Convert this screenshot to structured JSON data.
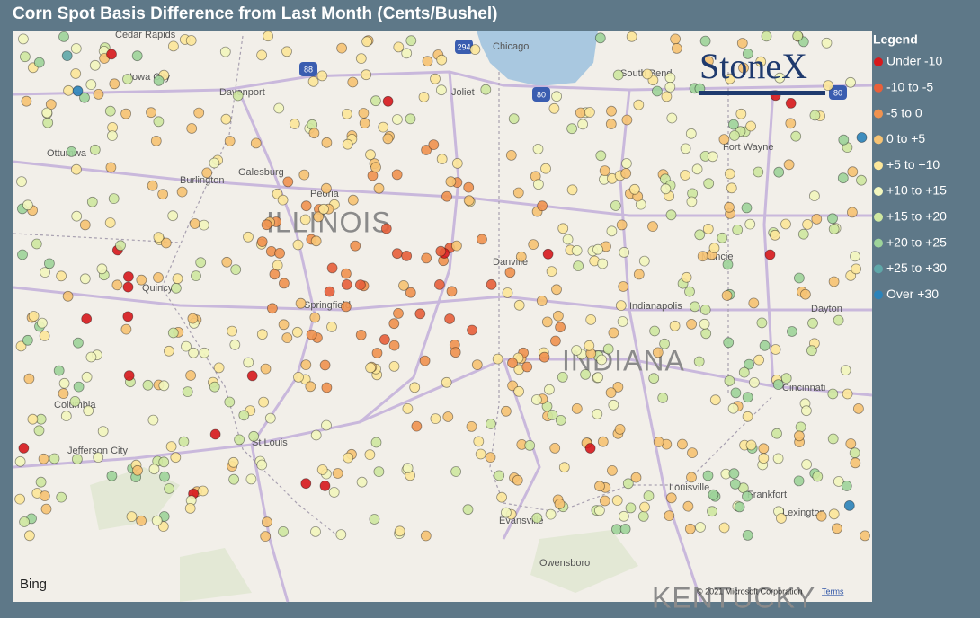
{
  "header": {
    "title": "Corn Spot Basis Difference from Last Month (Cents/Bushel)"
  },
  "legend": {
    "title": "Legend",
    "items": [
      {
        "label": "Under -10",
        "color": "#d7191c"
      },
      {
        "label": "-10 to -5",
        "color": "#e8603a"
      },
      {
        "label": "-5 to 0",
        "color": "#f0924f"
      },
      {
        "label": "0 to +5",
        "color": "#f7c373"
      },
      {
        "label": "+5 to +10",
        "color": "#fde79a"
      },
      {
        "label": "+10 to +15",
        "color": "#f2f6bd"
      },
      {
        "label": "+15 to +20",
        "color": "#cfe8a0"
      },
      {
        "label": "+20 to +25",
        "color": "#9ed49a"
      },
      {
        "label": "+25 to +30",
        "color": "#5fa7a8"
      },
      {
        "label": "Over +30",
        "color": "#2b83ba"
      }
    ]
  },
  "map": {
    "labels": [
      "Cedar Rapids",
      "Chicago",
      "Iowa City",
      "Davenport",
      "Joliet",
      "South Bend",
      "Ottumwa",
      "Galesburg",
      "Burlington",
      "Peoria",
      "ILLINOIS",
      "Danville",
      "Quincy",
      "Springfield",
      "Muncie",
      "Fort Wayne",
      "Indianapolis",
      "Dayton",
      "INDIANA",
      "Columbia",
      "Cincinnati",
      "St Louis",
      "Jefferson City",
      "Louisville",
      "Frankfort",
      "Lexington",
      "Evansville",
      "Owensboro",
      "KENTUCKY"
    ],
    "shields": [
      "294",
      "88",
      "80",
      "80"
    ],
    "logo": "StoneX",
    "provider": "Bing",
    "copyright": "© 2021 Microsoft Corporation",
    "terms": "Terms"
  }
}
